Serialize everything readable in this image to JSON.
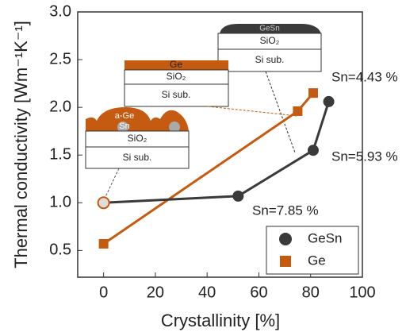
{
  "chart_data": {
    "type": "line",
    "x_label": "Crystallinity [%]",
    "y_label": "Thermal conductivity [Wm⁻¹K⁻¹]",
    "xlim": [
      -10,
      100
    ],
    "xticks": [
      0,
      20,
      40,
      60,
      80,
      100
    ],
    "ylim": [
      0.22,
      3.0
    ],
    "yticks": [
      {
        "value": 0.5,
        "label": "0.5"
      },
      {
        "value": 1,
        "label": "1.0"
      },
      {
        "value": 1.5,
        "label": "1.5"
      },
      {
        "value": 2,
        "label": "2.0"
      },
      {
        "value": 2.5,
        "label": "2.5"
      },
      {
        "value": 3,
        "label": "3.0"
      }
    ],
    "series": [
      {
        "name": "GeSn",
        "color": "#3a3a3a",
        "marker": "circle",
        "x": [
          0,
          52,
          81,
          87
        ],
        "values": [
          1.0,
          1.07,
          1.55,
          2.06
        ]
      },
      {
        "name": "Ge",
        "color": "#c55a11",
        "marker": "square",
        "x": [
          0,
          75,
          81
        ],
        "values": [
          0.57,
          1.96,
          2.15
        ]
      }
    ],
    "annotations": [
      "Sn=4.43 %",
      "Sn=5.93 %",
      "Sn=7.85 %"
    ],
    "legend": "lower right"
  },
  "insets": [
    {
      "layers": [
        "GeSn",
        "SiO₂",
        "Si sub."
      ]
    },
    {
      "layers": [
        "Ge",
        "SiO₂",
        "Si sub."
      ]
    },
    {
      "layers": [
        "a-Ge",
        "Sn",
        "SiO₂",
        "Si sub."
      ]
    }
  ]
}
